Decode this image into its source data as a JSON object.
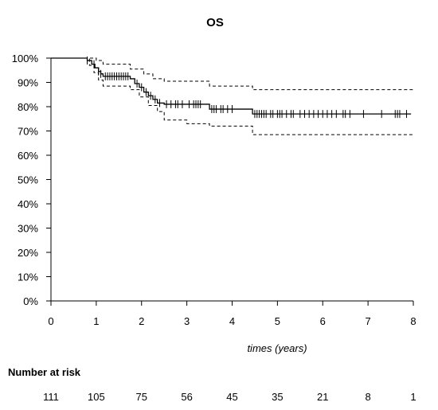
{
  "chart_data": {
    "type": "line",
    "title": "OS",
    "xlabel": "times (years)",
    "ylabel": "",
    "xlim": [
      0,
      8
    ],
    "ylim": [
      0,
      1
    ],
    "x_ticks": [
      0,
      1,
      2,
      3,
      4,
      5,
      6,
      7,
      8
    ],
    "y_ticks": [
      {
        "value": 0.0,
        "label": "0%"
      },
      {
        "value": 0.1,
        "label": "10%"
      },
      {
        "value": 0.2,
        "label": "20%"
      },
      {
        "value": 0.3,
        "label": "30%"
      },
      {
        "value": 0.4,
        "label": "40%"
      },
      {
        "value": 0.5,
        "label": "50%"
      },
      {
        "value": 0.6,
        "label": "60%"
      },
      {
        "value": 0.7,
        "label": "70%"
      },
      {
        "value": 0.8,
        "label": "80%"
      },
      {
        "value": 0.9,
        "label": "90%"
      },
      {
        "value": 1.0,
        "label": "100%"
      }
    ],
    "grid": false,
    "colors": {
      "line": "#000000",
      "ci": "#000000"
    },
    "survival": {
      "x": [
        0,
        0.8,
        0.9,
        0.97,
        1.05,
        1.1,
        1.15,
        1.75,
        1.85,
        1.95,
        2.05,
        2.15,
        2.25,
        2.35,
        2.5,
        3.5,
        4.45,
        7.95
      ],
      "y": [
        1.0,
        0.99,
        0.975,
        0.96,
        0.945,
        0.935,
        0.925,
        0.915,
        0.895,
        0.88,
        0.86,
        0.845,
        0.83,
        0.815,
        0.81,
        0.79,
        0.77,
        0.77
      ]
    },
    "ci_upper": {
      "x": [
        0,
        1.0,
        1.15,
        1.75,
        2.05,
        2.25,
        2.5,
        3.5,
        4.45,
        8.0
      ],
      "y": [
        1.0,
        0.99,
        0.975,
        0.955,
        0.935,
        0.915,
        0.905,
        0.885,
        0.87,
        0.87
      ]
    },
    "ci_lower": {
      "x": [
        0,
        0.85,
        0.95,
        1.05,
        1.15,
        1.75,
        1.95,
        2.15,
        2.35,
        2.5,
        3.0,
        3.5,
        4.45,
        8.0
      ],
      "y": [
        1.0,
        0.97,
        0.94,
        0.91,
        0.885,
        0.87,
        0.84,
        0.805,
        0.78,
        0.745,
        0.73,
        0.72,
        0.685,
        0.685
      ]
    },
    "censor_times": [
      0.8,
      0.95,
      1.05,
      1.1,
      1.2,
      1.25,
      1.3,
      1.35,
      1.4,
      1.45,
      1.5,
      1.55,
      1.6,
      1.65,
      1.7,
      1.9,
      2.0,
      2.1,
      2.2,
      2.3,
      2.4,
      2.55,
      2.65,
      2.75,
      2.8,
      2.9,
      3.05,
      3.15,
      3.2,
      3.25,
      3.3,
      3.55,
      3.6,
      3.65,
      3.75,
      3.8,
      3.9,
      4.0,
      4.5,
      4.55,
      4.6,
      4.65,
      4.7,
      4.75,
      4.85,
      4.9,
      5.0,
      5.05,
      5.1,
      5.2,
      5.3,
      5.35,
      5.5,
      5.6,
      5.7,
      5.8,
      5.9,
      6.0,
      6.1,
      6.2,
      6.3,
      6.45,
      6.5,
      6.6,
      6.9,
      7.3,
      7.6,
      7.65,
      7.7,
      7.85
    ],
    "risk_table": {
      "title": "Number at risk",
      "times": [
        0,
        1,
        2,
        3,
        4,
        5,
        6,
        7,
        8
      ],
      "counts": [
        "111",
        "105",
        "75",
        "56",
        "45",
        "35",
        "21",
        "8",
        "1"
      ]
    }
  }
}
